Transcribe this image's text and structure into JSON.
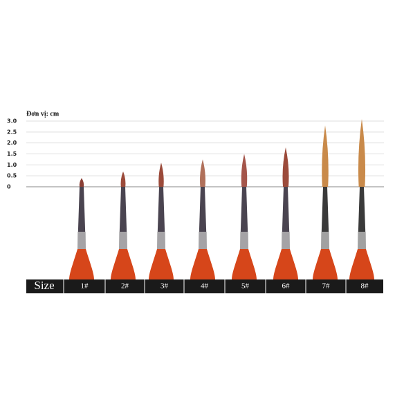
{
  "chart_data": {
    "type": "bar",
    "title": "Đơn vị: cm",
    "axis_header": "Size",
    "categories": [
      "1#",
      "2#",
      "3#",
      "4#",
      "5#",
      "6#",
      "7#",
      "8#"
    ],
    "values": [
      0.4,
      0.7,
      1.1,
      1.25,
      1.5,
      1.8,
      2.8,
      3.1
    ],
    "colors": [
      "#8a3f35",
      "#9b4a3a",
      "#9b4a3a",
      "#b0705a",
      "#a4554a",
      "#9b4a3a",
      "#c98a4a",
      "#c98a4a"
    ],
    "ylim": [
      0,
      3
    ],
    "yticks": [
      {
        "value": 0,
        "label": "0"
      },
      {
        "value": 0.5,
        "label": "0.5"
      },
      {
        "value": 1,
        "label": "1.0"
      },
      {
        "value": 1.5,
        "label": "1.5"
      },
      {
        "value": 2,
        "label": "2.0"
      },
      {
        "value": 2.5,
        "label": "2.5"
      },
      {
        "value": 3,
        "label": "3.0"
      }
    ],
    "grid": true
  }
}
